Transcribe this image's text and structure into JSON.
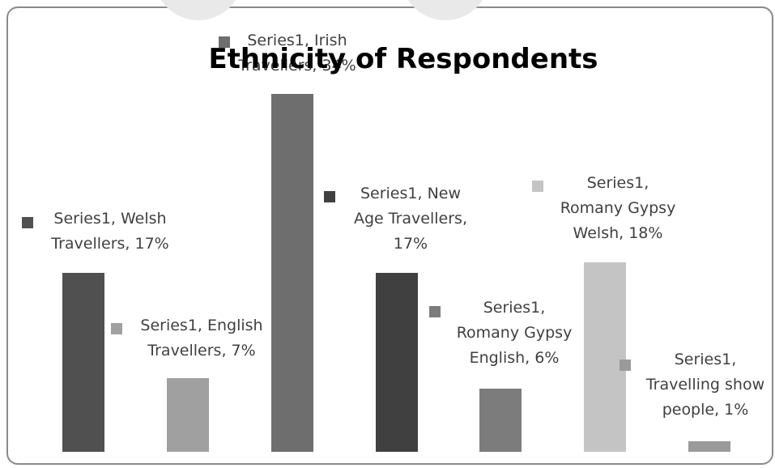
{
  "chart_data": {
    "type": "bar",
    "title": "Ethnicity of Respondents",
    "xlabel": "",
    "ylabel": "",
    "ylim": [
      0,
      0.36
    ],
    "grid": false,
    "legend": "none",
    "series": [
      {
        "name": "Series1",
        "values": [
          0.17,
          0.07,
          0.34,
          0.17,
          0.06,
          0.18,
          0.01
        ]
      }
    ],
    "categories": [
      "Welsh Travellers",
      "English Travellers",
      "Irish Travellers",
      "New Age Travellers",
      "Romany Gypsy English",
      "Romany Gypsy Welsh",
      "Travelling show people"
    ],
    "data_labels": [
      [
        "Series1, Welsh",
        "Travellers, 17%"
      ],
      [
        "Series1, English",
        "Travellers, 7%"
      ],
      [
        "Series1, Irish",
        "Travellers, 34%"
      ],
      [
        "Series1, New",
        "Age Travellers,",
        "17%"
      ],
      [
        "Series1,",
        "Romany Gypsy",
        "English, 6%"
      ],
      [
        "Series1,",
        "Romany Gypsy",
        "Welsh, 18%"
      ],
      [
        "Series1,",
        "Travelling show",
        "people, 1%"
      ]
    ],
    "colors": [
      "#505050",
      "#a0a0a0",
      "#6e6e6e",
      "#404040",
      "#7c7c7c",
      "#c4c4c4",
      "#9a9a9a"
    ]
  }
}
